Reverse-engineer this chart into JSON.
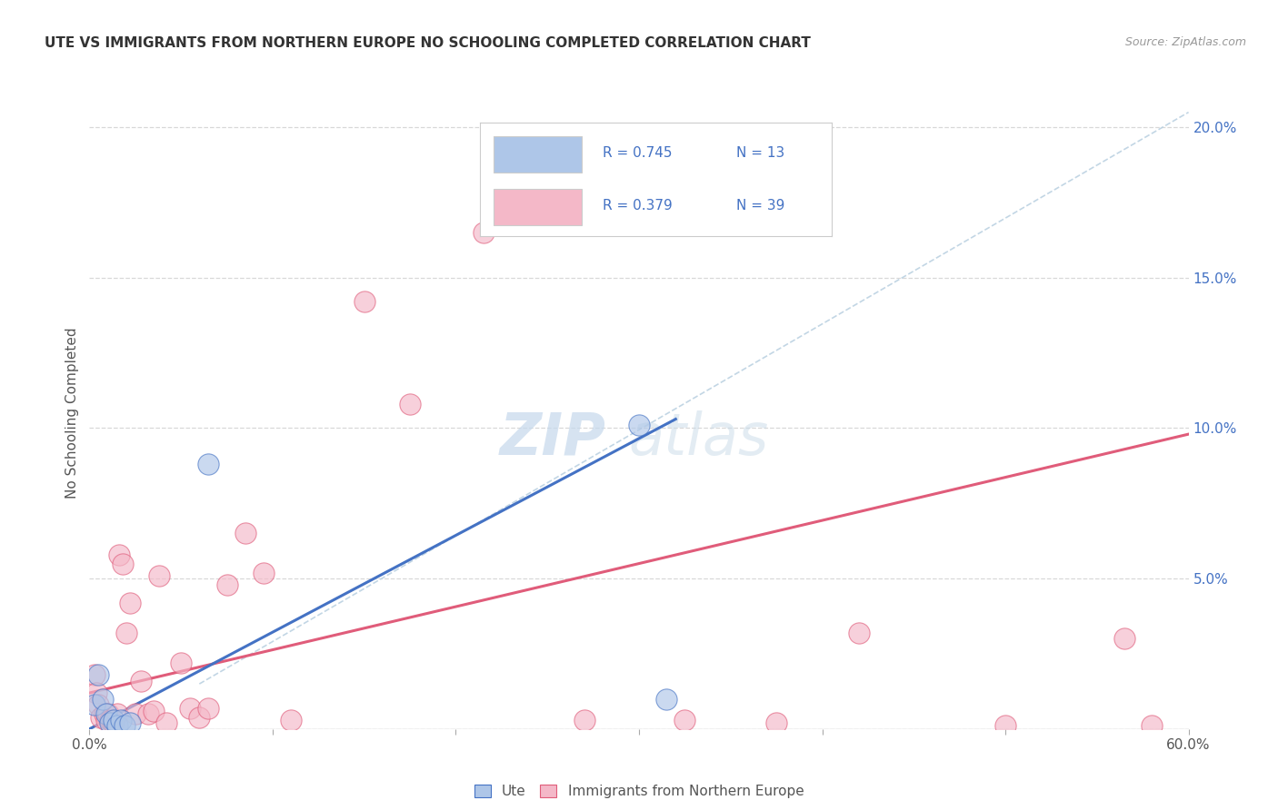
{
  "title": "UTE VS IMMIGRANTS FROM NORTHERN EUROPE NO SCHOOLING COMPLETED CORRELATION CHART",
  "source": "Source: ZipAtlas.com",
  "ylabel": "No Schooling Completed",
  "xlim": [
    0.0,
    0.6
  ],
  "ylim": [
    0.0,
    0.21
  ],
  "xticks": [
    0.0,
    0.1,
    0.2,
    0.3,
    0.4,
    0.5,
    0.6
  ],
  "yticks_right": [
    0.0,
    0.05,
    0.1,
    0.15,
    0.2
  ],
  "ytick_labels_right": [
    "",
    "5.0%",
    "10.0%",
    "15.0%",
    "20.0%"
  ],
  "legend_r_blue": "R = 0.745",
  "legend_n_blue": "N = 13",
  "legend_r_pink": "R = 0.379",
  "legend_n_pink": "N = 39",
  "blue_color": "#aec6e8",
  "blue_line_color": "#4472c4",
  "pink_color": "#f4b8c8",
  "pink_line_color": "#e05c7a",
  "dashed_line_color": "#b8cfe0",
  "text_blue": "#4472c4",
  "blue_scatter_x": [
    0.003,
    0.005,
    0.007,
    0.009,
    0.011,
    0.013,
    0.015,
    0.017,
    0.019,
    0.022,
    0.065,
    0.3,
    0.315
  ],
  "blue_scatter_y": [
    0.008,
    0.018,
    0.01,
    0.005,
    0.002,
    0.003,
    0.001,
    0.003,
    0.001,
    0.002,
    0.088,
    0.101,
    0.01
  ],
  "pink_scatter_x": [
    0.003,
    0.004,
    0.005,
    0.006,
    0.008,
    0.009,
    0.01,
    0.011,
    0.012,
    0.013,
    0.015,
    0.016,
    0.018,
    0.02,
    0.022,
    0.025,
    0.028,
    0.032,
    0.035,
    0.038,
    0.042,
    0.05,
    0.055,
    0.06,
    0.065,
    0.075,
    0.085,
    0.095,
    0.11,
    0.15,
    0.175,
    0.215,
    0.27,
    0.325,
    0.375,
    0.42,
    0.5,
    0.565,
    0.58
  ],
  "pink_scatter_y": [
    0.018,
    0.012,
    0.008,
    0.004,
    0.005,
    0.003,
    0.005,
    0.003,
    0.003,
    0.002,
    0.005,
    0.058,
    0.055,
    0.032,
    0.042,
    0.005,
    0.016,
    0.005,
    0.006,
    0.051,
    0.002,
    0.022,
    0.007,
    0.004,
    0.007,
    0.048,
    0.065,
    0.052,
    0.003,
    0.142,
    0.108,
    0.165,
    0.003,
    0.003,
    0.002,
    0.032,
    0.001,
    0.03,
    0.001
  ],
  "blue_line_x": [
    0.0,
    0.32
  ],
  "blue_line_y": [
    0.0,
    0.103
  ],
  "pink_line_x": [
    0.0,
    0.6
  ],
  "pink_line_y": [
    0.012,
    0.098
  ],
  "dashed_line_x": [
    0.06,
    0.6
  ],
  "dashed_line_y": [
    0.015,
    0.205
  ],
  "watermark_zip": "ZIP",
  "watermark_atlas": "atlas",
  "legend_label_ute": "Ute",
  "legend_label_immigrants": "Immigrants from Northern Europe",
  "background_color": "#ffffff",
  "grid_color": "#d8d8d8"
}
